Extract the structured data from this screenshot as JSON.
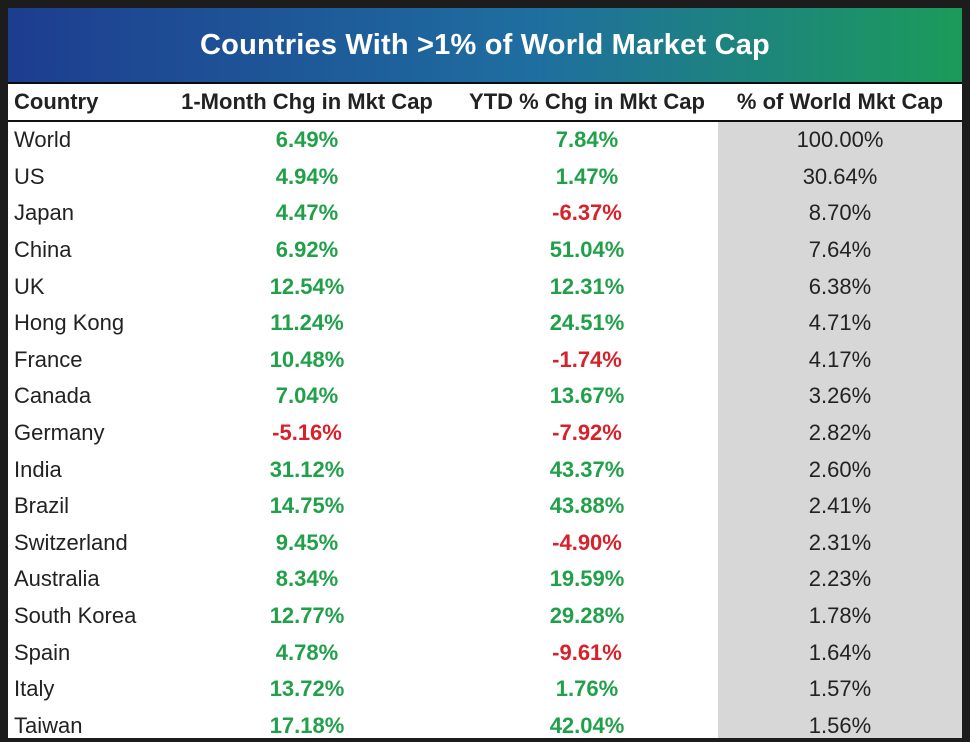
{
  "chart_data": {
    "type": "table",
    "title": "Countries With >1% of World Market Cap",
    "columns": [
      "Country",
      "1-Month Chg in Mkt Cap",
      "YTD % Chg in Mkt Cap",
      "% of World Mkt Cap"
    ],
    "rows": [
      {
        "country": "World",
        "month_chg": "6.49%",
        "ytd_chg": "7.84%",
        "world_share": "100.00%"
      },
      {
        "country": "US",
        "month_chg": "4.94%",
        "ytd_chg": "1.47%",
        "world_share": "30.64%"
      },
      {
        "country": "Japan",
        "month_chg": "4.47%",
        "ytd_chg": "-6.37%",
        "world_share": "8.70%"
      },
      {
        "country": "China",
        "month_chg": "6.92%",
        "ytd_chg": "51.04%",
        "world_share": "7.64%"
      },
      {
        "country": "UK",
        "month_chg": "12.54%",
        "ytd_chg": "12.31%",
        "world_share": "6.38%"
      },
      {
        "country": "Hong Kong",
        "month_chg": "11.24%",
        "ytd_chg": "24.51%",
        "world_share": "4.71%"
      },
      {
        "country": "France",
        "month_chg": "10.48%",
        "ytd_chg": "-1.74%",
        "world_share": "4.17%"
      },
      {
        "country": "Canada",
        "month_chg": "7.04%",
        "ytd_chg": "13.67%",
        "world_share": "3.26%"
      },
      {
        "country": "Germany",
        "month_chg": "-5.16%",
        "ytd_chg": "-7.92%",
        "world_share": "2.82%"
      },
      {
        "country": "India",
        "month_chg": "31.12%",
        "ytd_chg": "43.37%",
        "world_share": "2.60%"
      },
      {
        "country": "Brazil",
        "month_chg": "14.75%",
        "ytd_chg": "43.88%",
        "world_share": "2.41%"
      },
      {
        "country": "Switzerland",
        "month_chg": "9.45%",
        "ytd_chg": "-4.90%",
        "world_share": "2.31%"
      },
      {
        "country": "Australia",
        "month_chg": "8.34%",
        "ytd_chg": "19.59%",
        "world_share": "2.23%"
      },
      {
        "country": "South Korea",
        "month_chg": "12.77%",
        "ytd_chg": "29.28%",
        "world_share": "1.78%"
      },
      {
        "country": "Spain",
        "month_chg": "4.78%",
        "ytd_chg": "-9.61%",
        "world_share": "1.64%"
      },
      {
        "country": "Italy",
        "month_chg": "13.72%",
        "ytd_chg": "1.76%",
        "world_share": "1.57%"
      },
      {
        "country": "Taiwan",
        "month_chg": "17.18%",
        "ytd_chg": "42.04%",
        "world_share": "1.56%"
      }
    ],
    "colors": {
      "positive": "#21a04a",
      "negative": "#d8212a",
      "share_column_bg": "#d7d7d7"
    }
  }
}
